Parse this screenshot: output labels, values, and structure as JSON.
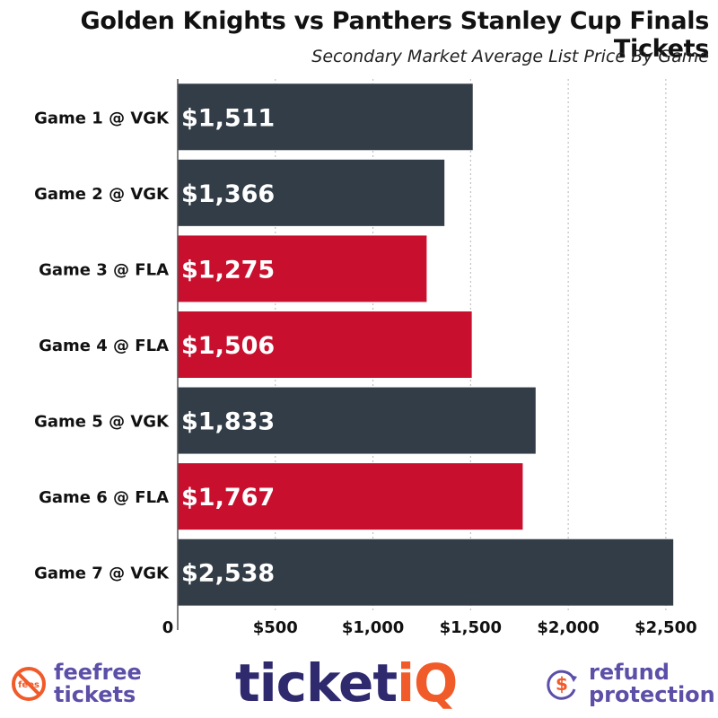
{
  "chart_data": {
    "type": "bar",
    "orientation": "horizontal",
    "title": "Golden Knights vs Panthers Stanley Cup Finals Tickets",
    "subtitle": "Secondary Market Average List Price By Game",
    "categories": [
      "Game 1 @ VGK",
      "Game 2 @ VGK",
      "Game 3 @ FLA",
      "Game 4 @ FLA",
      "Game 5 @ VGK",
      "Game 6 @ FLA",
      "Game 7 @ VGK"
    ],
    "values": [
      1511,
      1366,
      1275,
      1506,
      1833,
      1767,
      2538
    ],
    "value_labels": [
      "$1,511",
      "$1,366",
      "$1,275",
      "$1,506",
      "$1,833",
      "$1,767",
      "$2,538"
    ],
    "bar_colors": [
      "#333d47",
      "#333d47",
      "#c8102e",
      "#c8102e",
      "#333d47",
      "#c8102e",
      "#333d47"
    ],
    "xlim": [
      0,
      2620
    ],
    "x_ticks": [
      0,
      500,
      1000,
      1500,
      2000,
      2500
    ],
    "x_tick_labels": [
      "0",
      "$500",
      "$1,000",
      "$1,500",
      "$2,000",
      "$2,500"
    ],
    "grid": "vertical-dotted",
    "legend": "none"
  },
  "colors": {
    "vgk": "#333d47",
    "fla": "#c8102e",
    "brand_navy": "#2f2a6e",
    "brand_orange": "#f15a29",
    "brand_purple": "#5b4fa8"
  },
  "footer": {
    "left_logo": {
      "badge_text": "fees",
      "line1": "feefree",
      "line2": "tickets",
      "icon": "no-fees-icon"
    },
    "brand": {
      "part1": "ticket",
      "part2": "iQ"
    },
    "right_logo": {
      "line1": "refund",
      "line2": "protection",
      "icon": "refund-dollar-icon"
    }
  }
}
